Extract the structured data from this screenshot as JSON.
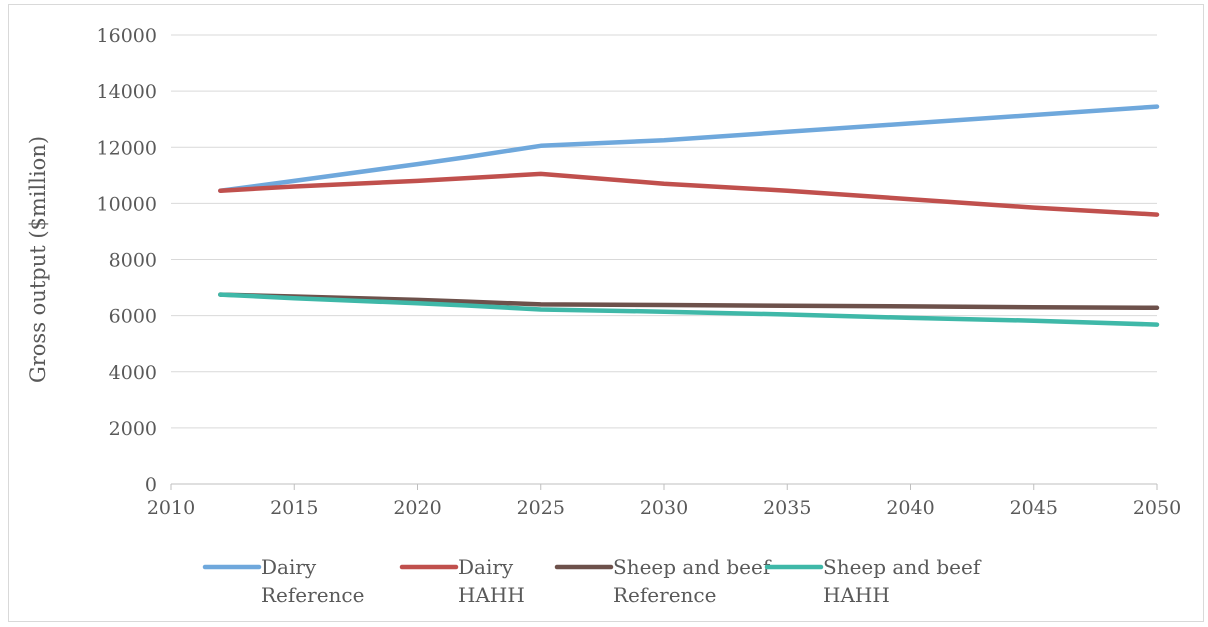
{
  "chart_data": {
    "type": "line",
    "title": "",
    "xlabel": "",
    "ylabel": "Gross output ($million)",
    "xlim": [
      2010,
      2050
    ],
    "ylim": [
      0,
      16000
    ],
    "xticks": [
      2010,
      2015,
      2020,
      2025,
      2030,
      2035,
      2040,
      2045,
      2050
    ],
    "yticks": [
      0,
      2000,
      4000,
      6000,
      8000,
      10000,
      12000,
      14000,
      16000
    ],
    "grid": "horizontal",
    "legend_position": "bottom",
    "x": [
      2012,
      2015,
      2020,
      2022,
      2025,
      2030,
      2035,
      2040,
      2045,
      2050
    ],
    "series": [
      {
        "name": [
          "Dairy",
          "Reference"
        ],
        "color": "#6fa8dc",
        "values": [
          10450,
          10800,
          11400,
          11650,
          12050,
          12250,
          12550,
          12850,
          13150,
          13450
        ]
      },
      {
        "name": [
          "Dairy",
          "HAHH"
        ],
        "color": "#c0504d",
        "values": [
          10450,
          10600,
          10800,
          10900,
          11050,
          10700,
          10450,
          10150,
          9850,
          9600
        ]
      },
      {
        "name": [
          "Sheep and beef",
          "Reference"
        ],
        "color": "#6d514b",
        "values": [
          6750,
          6680,
          6560,
          6500,
          6400,
          6380,
          6350,
          6330,
          6300,
          6280
        ]
      },
      {
        "name": [
          "Sheep and beef",
          "HAHH"
        ],
        "color": "#3fb8a8",
        "values": [
          6750,
          6620,
          6440,
          6360,
          6220,
          6140,
          6040,
          5920,
          5820,
          5680
        ]
      }
    ]
  }
}
